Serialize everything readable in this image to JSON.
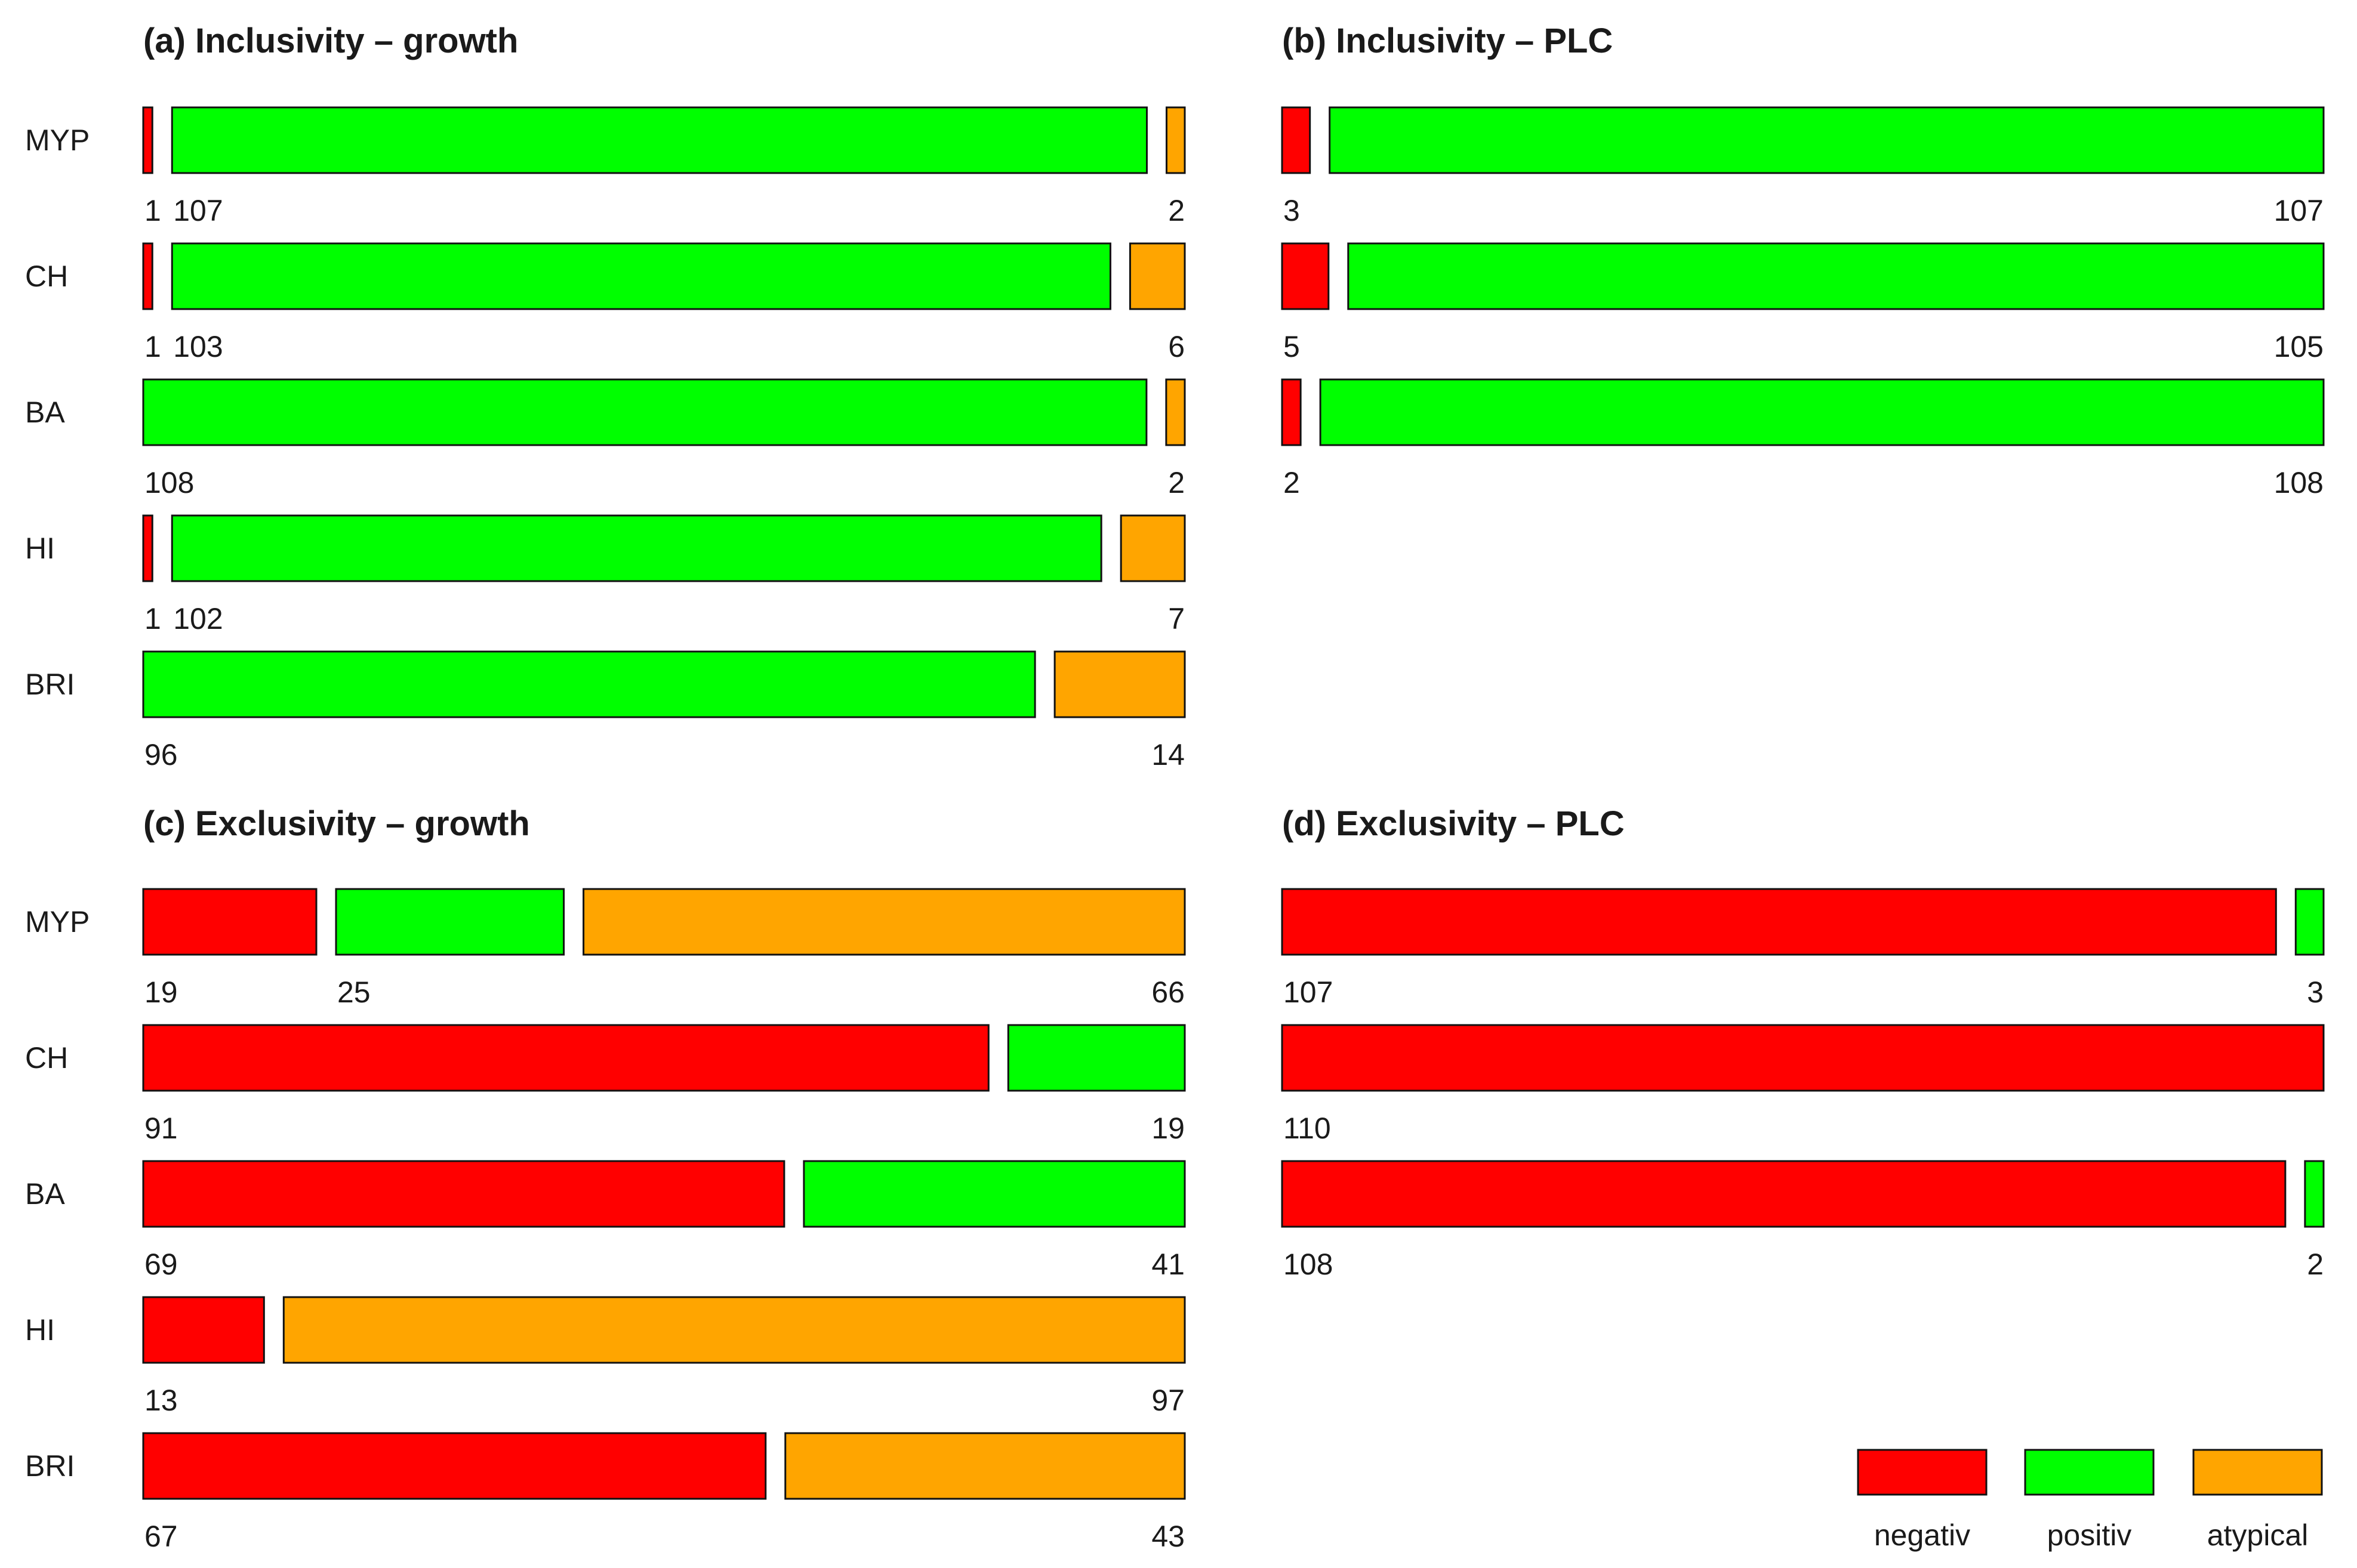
{
  "chart_data": [
    {
      "type": "bar",
      "orientation": "horizontal",
      "stacked": true,
      "title": "(a) Inclusivity – growth",
      "categories": [
        "MYP",
        "CH",
        "BA",
        "HI",
        "BRI"
      ],
      "series": [
        {
          "name": "negativ",
          "values": [
            1,
            1,
            0,
            1,
            0
          ]
        },
        {
          "name": "positiv",
          "values": [
            107,
            103,
            108,
            102,
            96
          ]
        },
        {
          "name": "atypical",
          "values": [
            2,
            6,
            2,
            7,
            14
          ]
        }
      ],
      "xlim": [
        0,
        110
      ]
    },
    {
      "type": "bar",
      "orientation": "horizontal",
      "stacked": true,
      "title": "(b) Inclusivity – PLC",
      "categories": [
        "MYP",
        "CH",
        "BA"
      ],
      "series": [
        {
          "name": "negativ",
          "values": [
            3,
            5,
            2
          ]
        },
        {
          "name": "positiv",
          "values": [
            107,
            105,
            108
          ]
        },
        {
          "name": "atypical",
          "values": [
            0,
            0,
            0
          ]
        }
      ],
      "xlim": [
        0,
        110
      ]
    },
    {
      "type": "bar",
      "orientation": "horizontal",
      "stacked": true,
      "title": "(c) Exclusivity – growth",
      "categories": [
        "MYP",
        "CH",
        "BA",
        "HI",
        "BRI"
      ],
      "series": [
        {
          "name": "negativ",
          "values": [
            19,
            91,
            69,
            13,
            67
          ]
        },
        {
          "name": "positiv",
          "values": [
            25,
            19,
            41,
            0,
            0
          ]
        },
        {
          "name": "atypical",
          "values": [
            66,
            0,
            0,
            97,
            43
          ]
        }
      ],
      "xlim": [
        0,
        110
      ]
    },
    {
      "type": "bar",
      "orientation": "horizontal",
      "stacked": true,
      "title": "(d) Exclusivity – PLC",
      "categories": [
        "MYP",
        "CH",
        "BA"
      ],
      "series": [
        {
          "name": "negativ",
          "values": [
            107,
            110,
            108
          ]
        },
        {
          "name": "positiv",
          "values": [
            3,
            0,
            2
          ]
        },
        {
          "name": "atypical",
          "values": [
            0,
            0,
            0
          ]
        }
      ],
      "xlim": [
        0,
        110
      ]
    }
  ],
  "legend": {
    "placement": "bottom-right",
    "items": [
      {
        "label": "negativ",
        "color": "#ff0000"
      },
      {
        "label": "positiv",
        "color": "#00ff00"
      },
      {
        "label": "atypical",
        "color": "#ffa500"
      }
    ]
  },
  "colors": {
    "negativ": "#ff0000",
    "positiv": "#00ff00",
    "atypical": "#ffa500"
  }
}
